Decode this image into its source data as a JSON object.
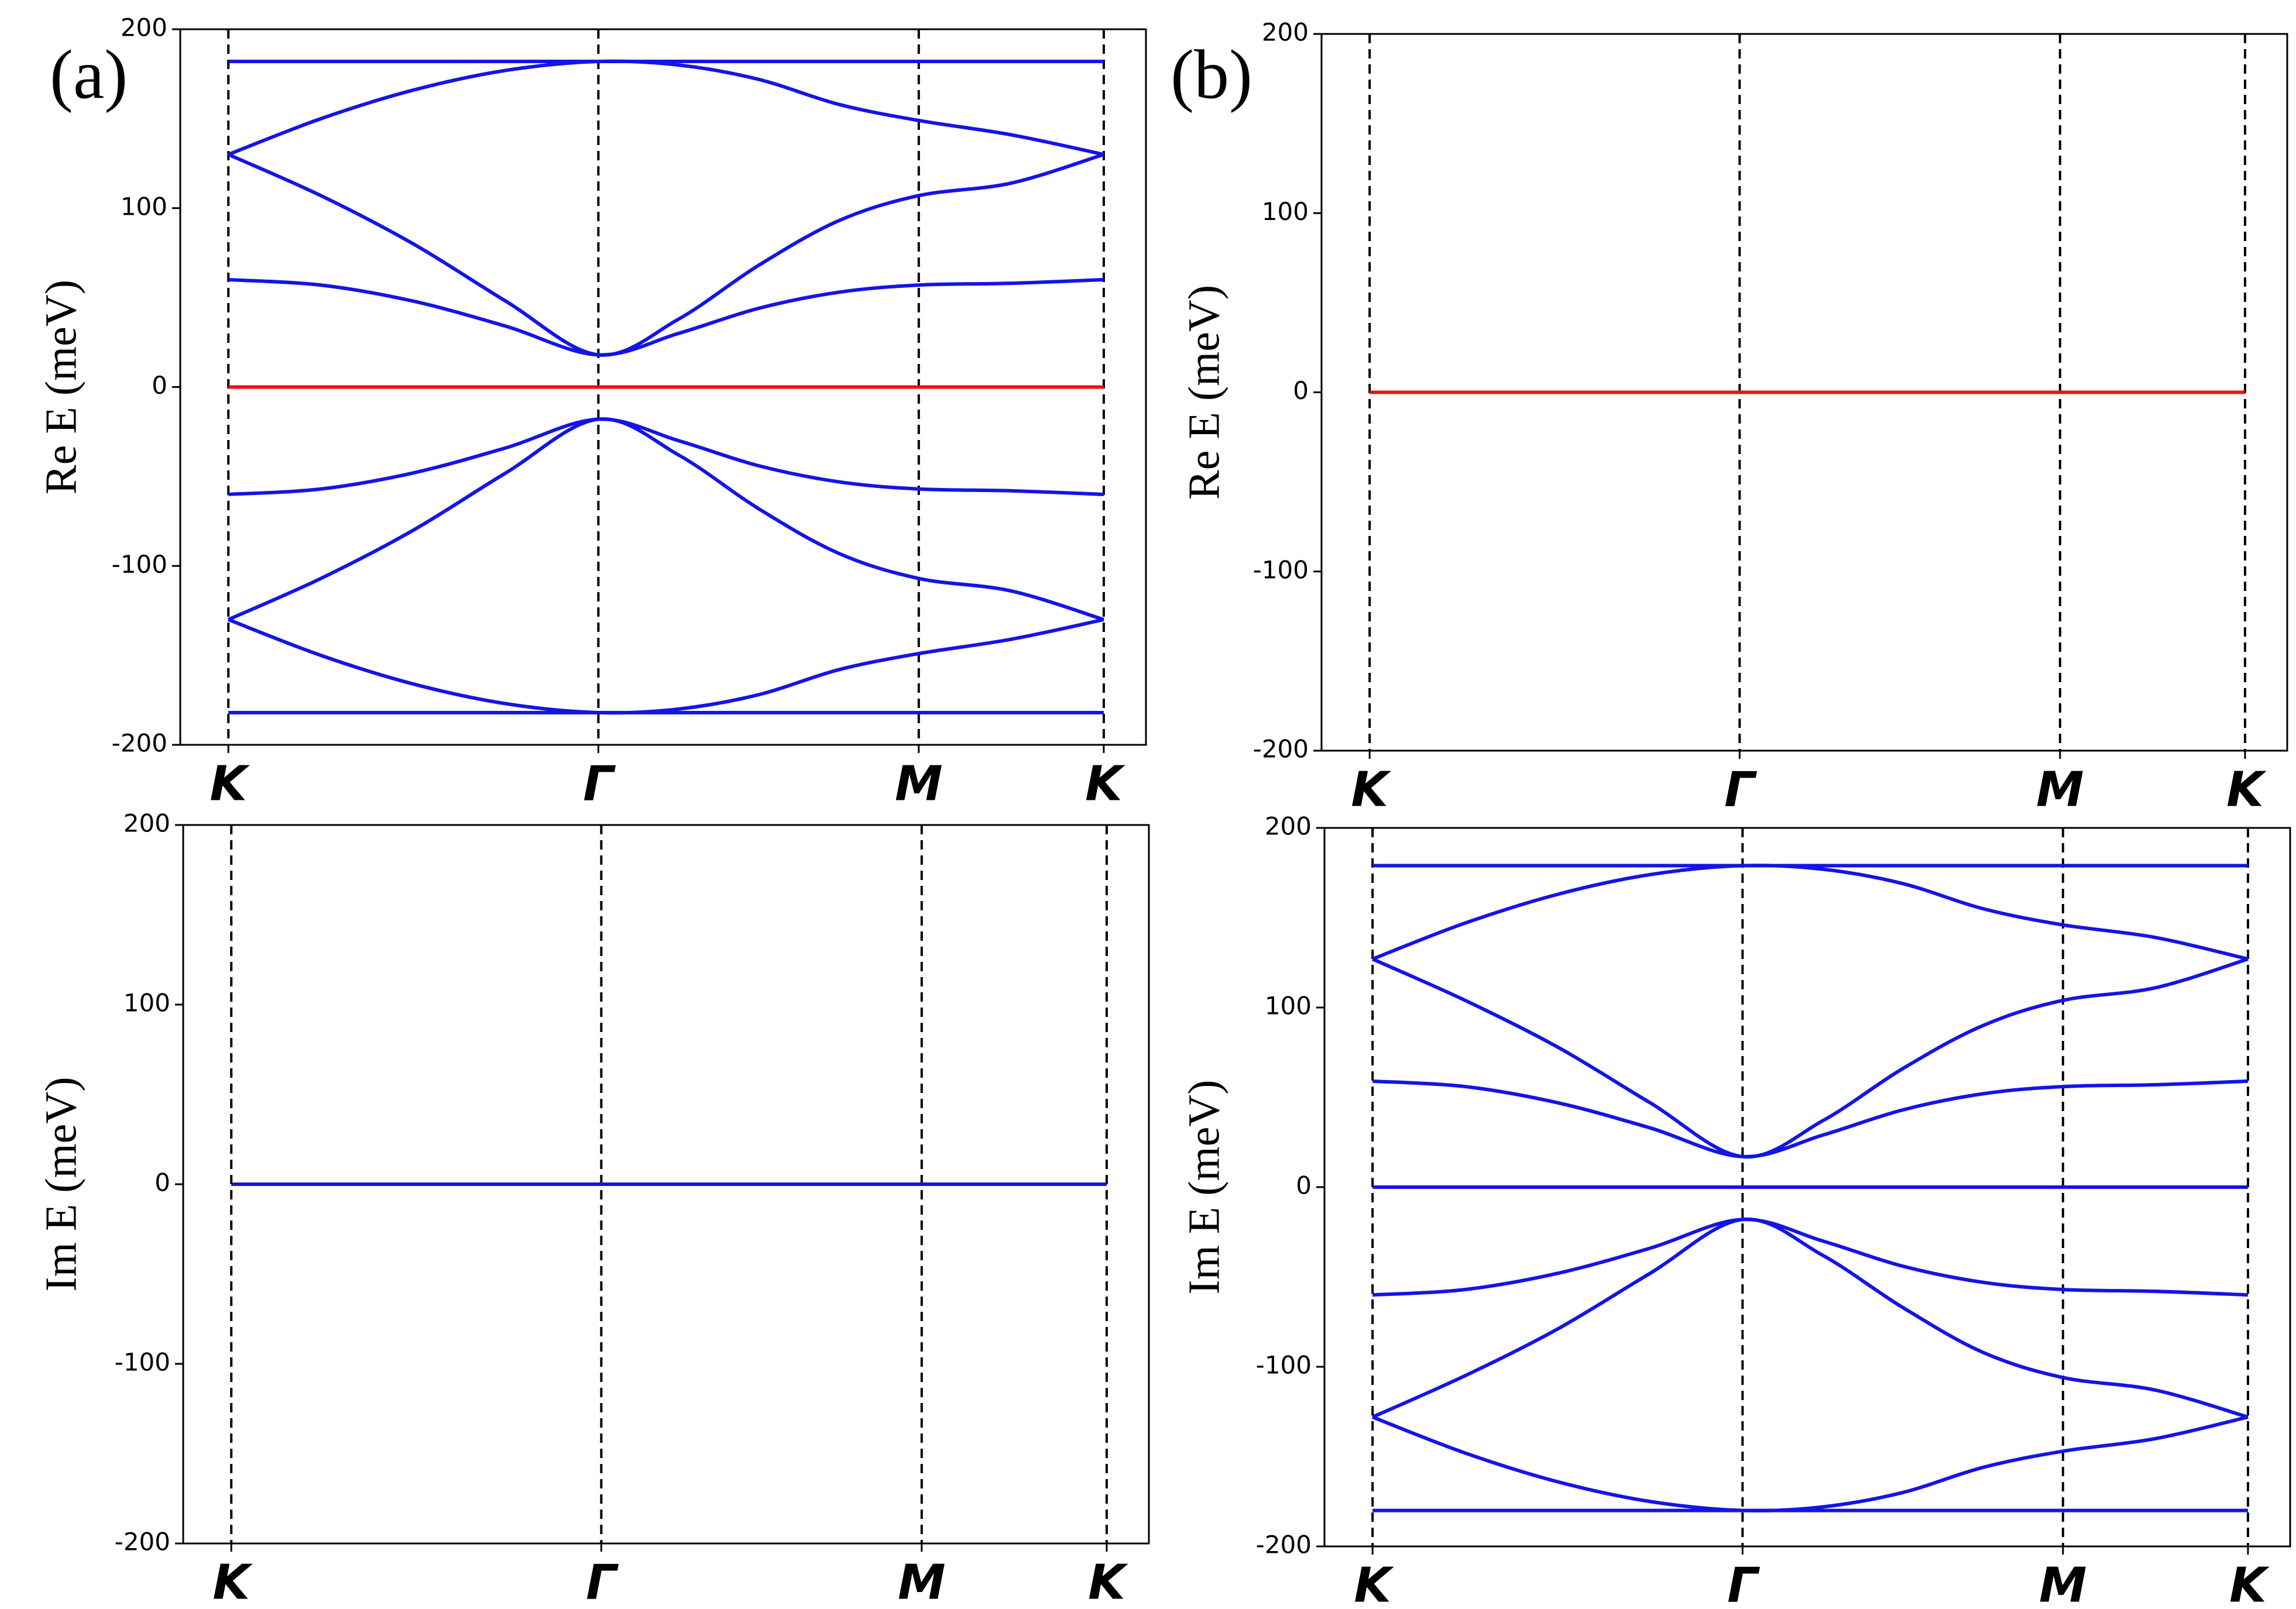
{
  "chart_data": [
    {
      "type": "line",
      "panel_label": "(a)",
      "ylabel": "Re E (meV)",
      "x": [
        0,
        0.25,
        0.5,
        0.75,
        1,
        1.217,
        1.433,
        1.65,
        1.866,
        2.116,
        2.366
      ],
      "xlim": [
        -0.13,
        2.48
      ],
      "xticks": [
        {
          "value": 0,
          "label": "K"
        },
        {
          "value": 1,
          "label": "Γ"
        },
        {
          "value": 1.866,
          "label": "M"
        },
        {
          "value": 2.366,
          "label": "K"
        }
      ],
      "ylim": [
        -200,
        200
      ],
      "yticks": [
        200,
        100,
        0,
        -100,
        -200
      ],
      "grid": true,
      "series": [
        {
          "color": "#1414e6",
          "values": [
            182,
            182,
            182,
            182,
            182,
            182,
            182,
            182,
            182,
            182,
            182
          ]
        },
        {
          "color": "#1414e6",
          "values": [
            130,
            150,
            166,
            177,
            182,
            180,
            172,
            158,
            149,
            141,
            130
          ]
        },
        {
          "color": "#1414e6",
          "values": [
            130,
            107,
            80,
            48,
            18,
            38,
            68,
            93,
            107,
            114,
            130
          ]
        },
        {
          "color": "#1414e6",
          "values": [
            60,
            57,
            48,
            34,
            18,
            30,
            44,
            53,
            57,
            58,
            60
          ]
        },
        {
          "color": "#ee1111",
          "values": [
            0,
            0,
            0,
            0,
            0,
            0,
            0,
            0,
            0,
            0,
            0
          ]
        },
        {
          "color": "#1414e6",
          "values": [
            -60,
            -57,
            -48,
            -34,
            -18,
            -30,
            -44,
            -53,
            -57,
            -58,
            -60
          ]
        },
        {
          "color": "#1414e6",
          "values": [
            -130,
            -107,
            -80,
            -48,
            -18,
            -38,
            -68,
            -93,
            -107,
            -114,
            -130
          ]
        },
        {
          "color": "#1414e6",
          "values": [
            -130,
            -150,
            -166,
            -177,
            -182,
            -180,
            -172,
            -158,
            -149,
            -141,
            -130
          ]
        },
        {
          "color": "#1414e6",
          "values": [
            -182,
            -182,
            -182,
            -182,
            -182,
            -182,
            -182,
            -182,
            -182,
            -182,
            -182
          ]
        }
      ]
    },
    {
      "type": "line",
      "panel_label": "(b)",
      "ylabel": "Re E (meV)",
      "x": [
        0,
        0.25,
        0.5,
        0.75,
        1,
        1.217,
        1.433,
        1.65,
        1.866,
        2.116,
        2.366
      ],
      "xlim": [
        -0.13,
        2.48
      ],
      "xticks": [
        {
          "value": 0,
          "label": "K"
        },
        {
          "value": 1,
          "label": "Γ"
        },
        {
          "value": 1.866,
          "label": "M"
        },
        {
          "value": 2.366,
          "label": "K"
        }
      ],
      "ylim": [
        -200,
        200
      ],
      "yticks": [
        200,
        100,
        0,
        -100,
        -200
      ],
      "grid": true,
      "series": [
        {
          "color": "#ee1111",
          "values": [
            0,
            0,
            0,
            0,
            0,
            0,
            0,
            0,
            0,
            0,
            0
          ]
        }
      ]
    },
    {
      "type": "line",
      "ylabel": "Im E (meV)",
      "x": [
        0,
        0.25,
        0.5,
        0.75,
        1,
        1.217,
        1.433,
        1.65,
        1.866,
        2.116,
        2.366
      ],
      "xlim": [
        -0.13,
        2.48
      ],
      "xticks": [
        {
          "value": 0,
          "label": "K"
        },
        {
          "value": 1,
          "label": "Γ"
        },
        {
          "value": 1.866,
          "label": "M"
        },
        {
          "value": 2.366,
          "label": "K"
        }
      ],
      "ylim": [
        -200,
        200
      ],
      "yticks": [
        200,
        100,
        0,
        -100,
        -200
      ],
      "grid": true,
      "series": [
        {
          "color": "#1414e6",
          "values": [
            0,
            0,
            0,
            0,
            0,
            0,
            0,
            0,
            0,
            0,
            0
          ]
        }
      ]
    },
    {
      "type": "line",
      "ylabel": "Im E (meV)",
      "x": [
        0,
        0.25,
        0.5,
        0.75,
        1,
        1.217,
        1.433,
        1.65,
        1.866,
        2.116,
        2.366
      ],
      "xlim": [
        -0.13,
        2.48
      ],
      "xticks": [
        {
          "value": 0,
          "label": "K"
        },
        {
          "value": 1,
          "label": "Γ"
        },
        {
          "value": 1.866,
          "label": "M"
        },
        {
          "value": 2.366,
          "label": "K"
        }
      ],
      "ylim": [
        -200,
        200
      ],
      "yticks": [
        200,
        100,
        0,
        -100,
        -200
      ],
      "grid": true,
      "series": [
        {
          "color": "#1414e6",
          "values": [
            179,
            179,
            179,
            179,
            179,
            179,
            179,
            179,
            179,
            179,
            179
          ]
        },
        {
          "color": "#1414e6",
          "values": [
            127,
            147,
            163,
            174,
            179,
            177,
            169,
            155,
            146,
            139,
            127
          ]
        },
        {
          "color": "#1414e6",
          "values": [
            127,
            104,
            78,
            47,
            17,
            37,
            66,
            90,
            104,
            111,
            127
          ]
        },
        {
          "color": "#1414e6",
          "values": [
            59,
            56,
            47,
            33,
            17,
            29,
            43,
            52,
            56,
            57,
            59
          ]
        },
        {
          "color": "#1414e6",
          "values": [
            0,
            0,
            0,
            0,
            0,
            0,
            0,
            0,
            0,
            0,
            0
          ]
        },
        {
          "color": "#1414e6",
          "values": [
            -60,
            -57,
            -48,
            -34,
            -18,
            -30,
            -44,
            -53,
            -57,
            -58,
            -60
          ]
        },
        {
          "color": "#1414e6",
          "values": [
            -128,
            -105,
            -79,
            -48,
            -18,
            -38,
            -67,
            -92,
            -106,
            -113,
            -128
          ]
        },
        {
          "color": "#1414e6",
          "values": [
            -128,
            -148,
            -164,
            -175,
            -180,
            -178,
            -170,
            -156,
            -147,
            -140,
            -128
          ]
        },
        {
          "color": "#1414e6",
          "values": [
            -180,
            -180,
            -180,
            -180,
            -180,
            -180,
            -180,
            -180,
            -180,
            -180,
            -180
          ]
        }
      ]
    }
  ]
}
